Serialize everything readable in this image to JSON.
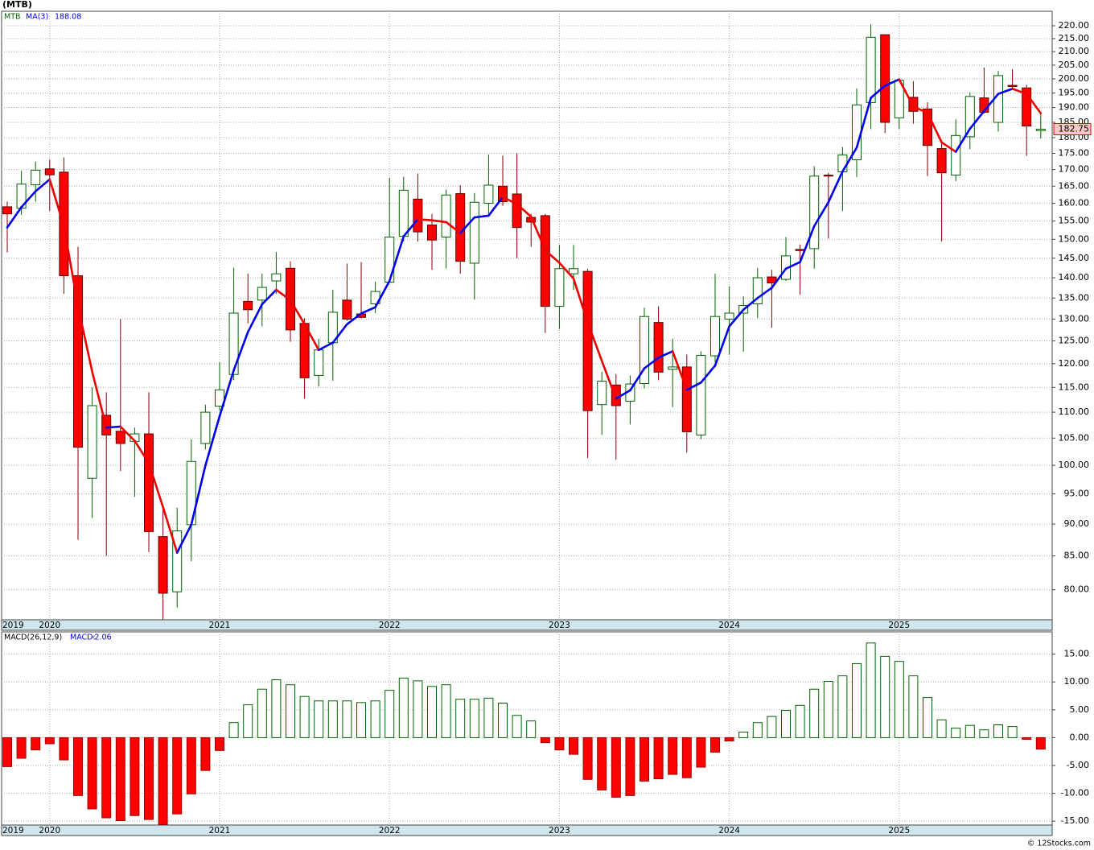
{
  "chart_data": [
    {
      "type": "candlestick",
      "title": "(MTB)",
      "symbol": "MTB",
      "categories": [
        "2019",
        null,
        null,
        "2020",
        null,
        null,
        null,
        null,
        null,
        null,
        null,
        null,
        null,
        null,
        null,
        "2021",
        null,
        null,
        null,
        null,
        null,
        null,
        null,
        null,
        null,
        null,
        null,
        "2022",
        null,
        null,
        null,
        null,
        null,
        null,
        null,
        null,
        null,
        null,
        null,
        "2023",
        null,
        null,
        null,
        null,
        null,
        null,
        null,
        null,
        null,
        null,
        null,
        "2024",
        null,
        null,
        null,
        null,
        null,
        null,
        null,
        null,
        null,
        null,
        null,
        "2025",
        null,
        null,
        null,
        null,
        null,
        null,
        null,
        null,
        null,
        null
      ],
      "open": [
        159,
        158.6,
        165.4,
        170.2,
        169.2,
        140.5,
        97.7,
        109.4,
        106.3,
        104.4,
        105.8,
        88,
        79.7,
        89.9,
        104,
        111.2,
        117.7,
        134.2,
        134.5,
        139.2,
        142.4,
        129,
        117.5,
        124.6,
        134.5,
        131.2,
        133.6,
        138.9,
        150.8,
        161.2,
        153.9,
        150.6,
        162.8,
        143.7,
        160,
        165,
        162.7,
        156,
        156.5,
        133,
        141,
        141.6,
        111.5,
        115.5,
        112.2,
        115.8,
        129.2,
        118.8,
        119.3,
        105.6,
        121.7,
        130,
        131.4,
        133.6,
        140.2,
        139.6,
        147.3,
        147.5,
        168.3,
        169.3,
        173,
        191.7,
        216.5,
        186.5,
        193.5,
        189.5,
        176.5,
        168.3,
        180.3,
        193.3,
        185,
        197.7,
        196.8,
        182.3
      ],
      "high": [
        160.5,
        169.6,
        172.4,
        173,
        173.7,
        148,
        115,
        114,
        130,
        107,
        114,
        92.7,
        92.7,
        104.8,
        111.5,
        120.3,
        142.5,
        141,
        141,
        146.6,
        144.2,
        130.2,
        125.5,
        137,
        143.6,
        144,
        139,
        167.5,
        167.8,
        168.8,
        157,
        164,
        165.3,
        163,
        174.6,
        174.3,
        175,
        157,
        157,
        148.5,
        148.5,
        142.3,
        118.3,
        117.8,
        117.5,
        132.7,
        133,
        125.5,
        122,
        122.7,
        141,
        137.8,
        135.4,
        142.5,
        142,
        150.6,
        148.6,
        171,
        169,
        177,
        196.6,
        220.6,
        216.5,
        200.3,
        199.2,
        191.8,
        178.2,
        186,
        195.2,
        204.1,
        202.9,
        203.5,
        197.9,
        188
      ],
      "low": [
        146.5,
        156.7,
        160.5,
        157.8,
        136,
        87.5,
        91,
        85,
        99,
        94.5,
        85.6,
        75.8,
        77.5,
        84.2,
        102.9,
        110.3,
        116.5,
        129,
        128.3,
        136,
        124.8,
        112.7,
        115.2,
        116.4,
        129.6,
        130.2,
        131.4,
        138.9,
        149.4,
        149.4,
        142,
        142.4,
        141,
        134.6,
        157,
        159.3,
        145,
        148,
        126.8,
        127.7,
        137,
        101.3,
        105.6,
        101,
        107.6,
        114.8,
        116.5,
        111,
        102.3,
        104.8,
        120.3,
        122,
        122.6,
        130.2,
        128,
        139.2,
        135.8,
        142.3,
        150.2,
        157.8,
        167.7,
        182.8,
        181.5,
        182.8,
        184.6,
        168,
        149.4,
        166.5,
        176.3,
        188,
        182,
        196,
        174.2,
        179.8
      ],
      "close": [
        157,
        165.6,
        169.8,
        168.4,
        140.5,
        103.3,
        111.3,
        105.6,
        104,
        105.8,
        88.8,
        79.5,
        88.9,
        100.7,
        110,
        114.5,
        131.4,
        132.2,
        137.6,
        141,
        127.5,
        117,
        123,
        131.6,
        130,
        130.4,
        136.6,
        150.6,
        163.8,
        152,
        149.8,
        162.4,
        144.2,
        160.3,
        165.3,
        160.5,
        153.2,
        154.7,
        133,
        142.3,
        142.3,
        110.3,
        116.3,
        111.3,
        115.7,
        130.6,
        118.2,
        119.3,
        106.2,
        121.8,
        130.6,
        131.4,
        133.2,
        140,
        138.7,
        145.6,
        147,
        168,
        168,
        174.5,
        190.9,
        215.5,
        185,
        199.5,
        188.7,
        177.5,
        169,
        180.7,
        193.8,
        188.4,
        201.2,
        197.3,
        183.8,
        182.75
      ],
      "up_color": "#006400",
      "down_color": "#ff0000",
      "ma": {
        "name": "MA(3)",
        "up_color": "#0000ee",
        "down_color": "#ee0000",
        "values": [
          153.2,
          158.9,
          163.5,
          167,
          153.6,
          133,
          118.3,
          107,
          107.2,
          104.5,
          100.4,
          92.8,
          85.5,
          89.9,
          100,
          109.2,
          118.6,
          127,
          133.5,
          137,
          134.5,
          128.8,
          123,
          124.6,
          128.8,
          131.3,
          132.8,
          139.2,
          150.8,
          155.5,
          155.2,
          154.7,
          151.7,
          156,
          156.5,
          161.8,
          159.8,
          156.2,
          147.1,
          143.8,
          139.8,
          129.2,
          120.6,
          112.7,
          114.4,
          119,
          121.3,
          122.7,
          114.5,
          116,
          119.6,
          128.3,
          132.2,
          135,
          137.5,
          142.3,
          144,
          153.6,
          160.3,
          169.4,
          176.8,
          193.3,
          197.6,
          199.8,
          190.3,
          188.2,
          178.5,
          175.5,
          182.9,
          188.8,
          194.7,
          196.5,
          194.7,
          188.08
        ]
      },
      "ylim": [
        75.8,
        225.8
      ],
      "log_scale": true,
      "grid": true,
      "yticks": [
        {
          "value": 220,
          "label": "220.00"
        },
        {
          "value": 215,
          "label": "215.00"
        },
        {
          "value": 210,
          "label": "210.00"
        },
        {
          "value": 205,
          "label": "205.00"
        },
        {
          "value": 200,
          "label": "200.00"
        },
        {
          "value": 195,
          "label": "195.00"
        },
        {
          "value": 190,
          "label": "190.00"
        },
        {
          "value": 185,
          "label": "185.00"
        },
        {
          "value": 180,
          "label": "180.00"
        },
        {
          "value": 175,
          "label": "175.00"
        },
        {
          "value": 170,
          "label": "170.00"
        },
        {
          "value": 165,
          "label": "165.00"
        },
        {
          "value": 160,
          "label": "160.00"
        },
        {
          "value": 155,
          "label": "155.00"
        },
        {
          "value": 150,
          "label": "150.00"
        },
        {
          "value": 145,
          "label": "145.00"
        },
        {
          "value": 140,
          "label": "140.00"
        },
        {
          "value": 135,
          "label": "135.00"
        },
        {
          "value": 130,
          "label": "130.00"
        },
        {
          "value": 125,
          "label": "125.00"
        },
        {
          "value": 120,
          "label": "120.00"
        },
        {
          "value": 115,
          "label": "115.00"
        },
        {
          "value": 110,
          "label": "110.00"
        },
        {
          "value": 105,
          "label": "105.00"
        },
        {
          "value": 100,
          "label": "100.00"
        },
        {
          "value": 95,
          "label": "95.00"
        },
        {
          "value": 90,
          "label": "90.00"
        },
        {
          "value": 85,
          "label": "85.00"
        },
        {
          "value": 80,
          "label": "80.00"
        }
      ]
    },
    {
      "type": "histogram-bar",
      "title": "MACD(26,12,9)",
      "label": "MACD:",
      "categories": [
        "2019",
        null,
        null,
        "2020",
        null,
        null,
        null,
        null,
        null,
        null,
        null,
        null,
        null,
        null,
        null,
        "2021",
        null,
        null,
        null,
        null,
        null,
        null,
        null,
        null,
        null,
        null,
        null,
        "2022",
        null,
        null,
        null,
        null,
        null,
        null,
        null,
        null,
        null,
        null,
        null,
        "2023",
        null,
        null,
        null,
        null,
        null,
        null,
        null,
        null,
        null,
        null,
        null,
        "2024",
        null,
        null,
        null,
        null,
        null,
        null,
        null,
        null,
        null,
        null,
        null,
        "2025",
        null,
        null,
        null,
        null,
        null,
        null,
        null,
        null,
        null,
        null
      ],
      "values": [
        -5.2,
        -3.7,
        -2.2,
        -1.1,
        -4.0,
        -10.4,
        -12.8,
        -14.4,
        -14.9,
        -14.0,
        -14.7,
        -15.6,
        -13.7,
        -10.1,
        -5.9,
        -2.3,
        2.7,
        5.9,
        8.7,
        10.4,
        9.5,
        7.4,
        6.6,
        6.6,
        6.6,
        6.3,
        6.6,
        8.5,
        10.7,
        10.2,
        9.2,
        9.5,
        6.9,
        6.9,
        7.1,
        6.2,
        4.0,
        3.0,
        -0.9,
        -2.2,
        -3.0,
        -7.5,
        -9.4,
        -10.7,
        -10.4,
        -7.8,
        -7.4,
        -6.6,
        -7.2,
        -5.3,
        -2.6,
        -0.6,
        1.0,
        2.7,
        3.8,
        4.9,
        5.8,
        8.7,
        10.1,
        11.1,
        13.3,
        17.0,
        14.6,
        13.7,
        11.1,
        7.2,
        3.2,
        1.7,
        2.2,
        1.4,
        2.3,
        2.0,
        -0.3,
        -2.06
      ],
      "up_color": "#006400",
      "down_color": "#ff0000",
      "ylim": [
        -15.7,
        19.0
      ],
      "grid": true,
      "yticks": [
        {
          "value": 15,
          "label": "15.00"
        },
        {
          "value": 10,
          "label": "10.00"
        },
        {
          "value": 5,
          "label": "5.00"
        },
        {
          "value": 0,
          "label": "0.00"
        },
        {
          "value": -5,
          "label": "-5.00"
        },
        {
          "value": -10,
          "label": "-10.00"
        },
        {
          "value": -15,
          "label": "-15.00"
        }
      ]
    }
  ],
  "credit": "© 12Stocks.com"
}
